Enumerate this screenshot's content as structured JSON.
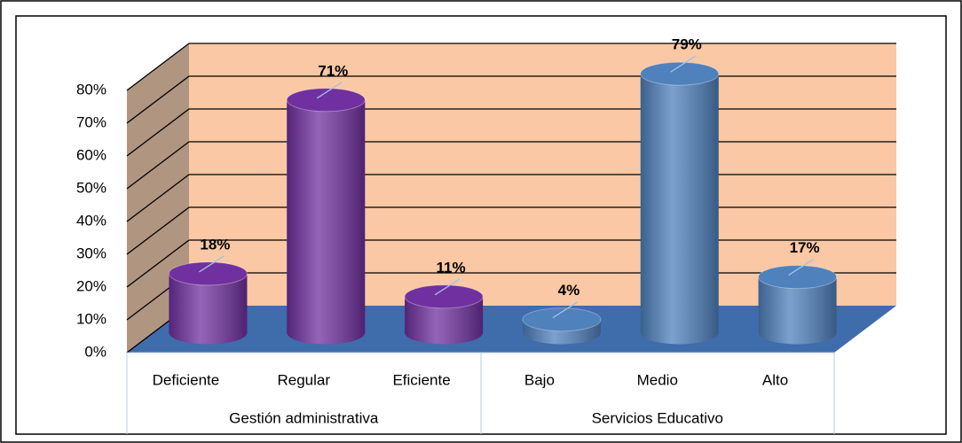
{
  "chart_data": {
    "type": "bar3d",
    "groups": [
      "Gestión administrativa",
      "Servicios Educativo"
    ],
    "categories": [
      "Deficiente",
      "Regular",
      "Eficiente",
      "Bajo",
      "Medio",
      "Alto"
    ],
    "values": [
      18,
      71,
      11,
      4,
      79,
      17
    ],
    "value_labels": [
      "18%",
      "71%",
      "11%",
      "4%",
      "79%",
      "17%"
    ],
    "colors": [
      "#7030a0",
      "#7030a0",
      "#7030a0",
      "#4f81bd",
      "#4f81bd",
      "#4f81bd"
    ],
    "ylim": [
      0,
      80
    ],
    "yticks": [
      {
        "value": 0,
        "label": "0%"
      },
      {
        "value": 10,
        "label": "10%"
      },
      {
        "value": 20,
        "label": "20%"
      },
      {
        "value": 30,
        "label": "30%"
      },
      {
        "value": 40,
        "label": "40%"
      },
      {
        "value": 50,
        "label": "50%"
      },
      {
        "value": 60,
        "label": "60%"
      },
      {
        "value": 70,
        "label": "70%"
      },
      {
        "value": 80,
        "label": "80%"
      }
    ],
    "grid": true
  }
}
